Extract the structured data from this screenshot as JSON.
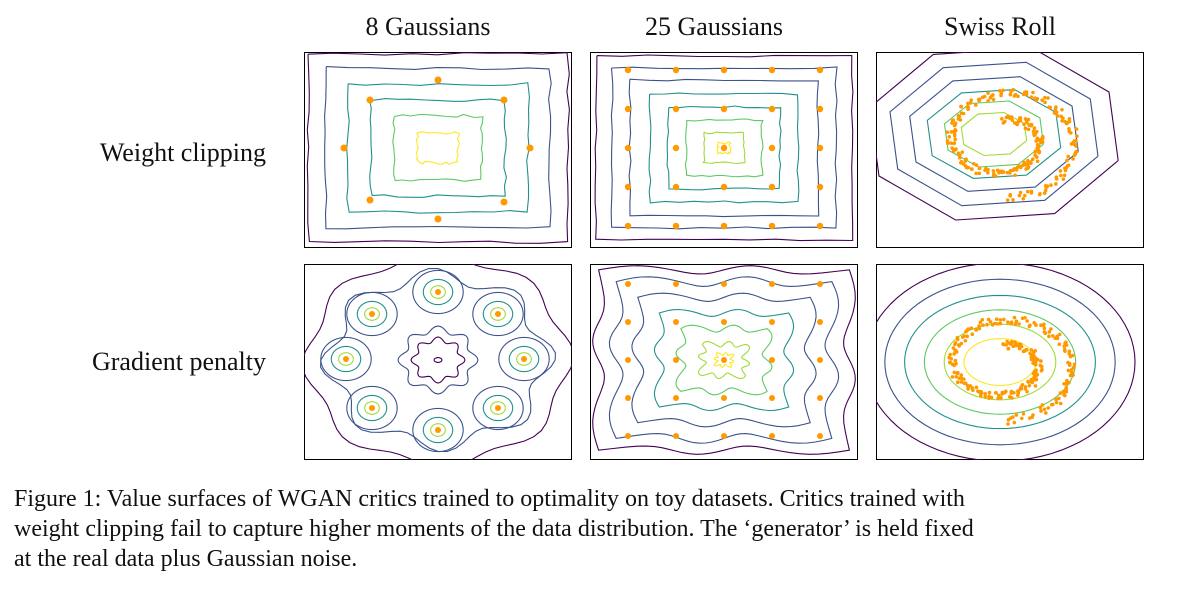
{
  "columns": [
    "8 Gaussians",
    "25 Gaussians",
    "Swiss Roll"
  ],
  "rows": [
    "Weight clipping",
    "Gradient penalty"
  ],
  "caption": {
    "line1": "Figure 1:  Value surfaces of WGAN critics trained to optimality on toy datasets. Critics trained with",
    "line2": "weight clipping fail to capture higher moments of the data distribution. The ‘generator’ is held fixed",
    "line3": "at the real data plus Gaussian noise."
  },
  "colors": {
    "contours": [
      "#440154",
      "#3b528b",
      "#21918c",
      "#5ec962",
      "#a0da39",
      "#fde725"
    ],
    "samples": "#ff9900",
    "frame": "#000000"
  }
}
